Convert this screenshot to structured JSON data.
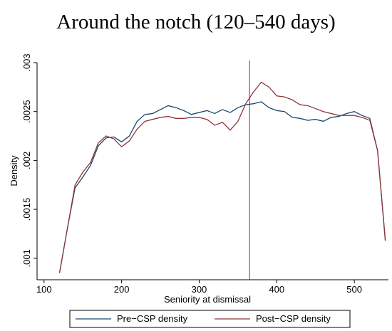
{
  "chart_data": {
    "type": "line",
    "title": "Around the notch (120–540 days)",
    "x_label": "Seniority at dismissal",
    "y_label": "Density",
    "x": [
      120,
      130,
      140,
      150,
      160,
      170,
      180,
      190,
      200,
      210,
      220,
      230,
      240,
      250,
      260,
      270,
      280,
      290,
      300,
      310,
      320,
      330,
      340,
      350,
      360,
      370,
      380,
      390,
      400,
      410,
      420,
      430,
      440,
      450,
      460,
      470,
      480,
      490,
      500,
      510,
      520,
      530,
      540
    ],
    "series": [
      {
        "name": "Pre−CSP density",
        "color": "#1a476f",
        "values": [
          0.00085,
          0.0013,
          0.00172,
          0.00183,
          0.00195,
          0.00215,
          0.00223,
          0.00224,
          0.00219,
          0.00225,
          0.0024,
          0.00247,
          0.00248,
          0.00252,
          0.00256,
          0.00254,
          0.00251,
          0.00247,
          0.00249,
          0.00251,
          0.00248,
          0.00252,
          0.00249,
          0.00254,
          0.00257,
          0.00258,
          0.0026,
          0.00254,
          0.00251,
          0.0025,
          0.00244,
          0.00243,
          0.00241,
          0.00242,
          0.0024,
          0.00244,
          0.00245,
          0.00248,
          0.0025,
          0.00246,
          0.00243,
          0.0021,
          0.00118
        ]
      },
      {
        "name": "Post−CSP density",
        "color": "#90353b",
        "values": [
          0.00085,
          0.0013,
          0.00175,
          0.00188,
          0.00198,
          0.00218,
          0.00225,
          0.00222,
          0.00214,
          0.0022,
          0.00232,
          0.0024,
          0.00242,
          0.00244,
          0.00245,
          0.00243,
          0.00243,
          0.00244,
          0.00244,
          0.00242,
          0.00236,
          0.00239,
          0.00231,
          0.0024,
          0.00258,
          0.0027,
          0.0028,
          0.00275,
          0.00266,
          0.00265,
          0.00262,
          0.00257,
          0.00256,
          0.00253,
          0.0025,
          0.00248,
          0.00246,
          0.00246,
          0.00246,
          0.00244,
          0.00241,
          0.0021,
          0.00118
        ]
      }
    ],
    "vline": 365,
    "vline_color": "#b2182b",
    "xlim": [
      91,
      544
    ],
    "xticks": [
      100,
      200,
      300,
      400,
      500
    ],
    "ylim": [
      0.00078,
      0.003
    ],
    "yticks": [
      {
        "value": 0.001,
        "label": ".001"
      },
      {
        "value": 0.0015,
        "label": ".0015"
      },
      {
        "value": 0.002,
        "label": ".002"
      },
      {
        "value": 0.0025,
        "label": ".0025"
      },
      {
        "value": 0.003,
        "label": ".003"
      }
    ],
    "legend": "bottom"
  }
}
